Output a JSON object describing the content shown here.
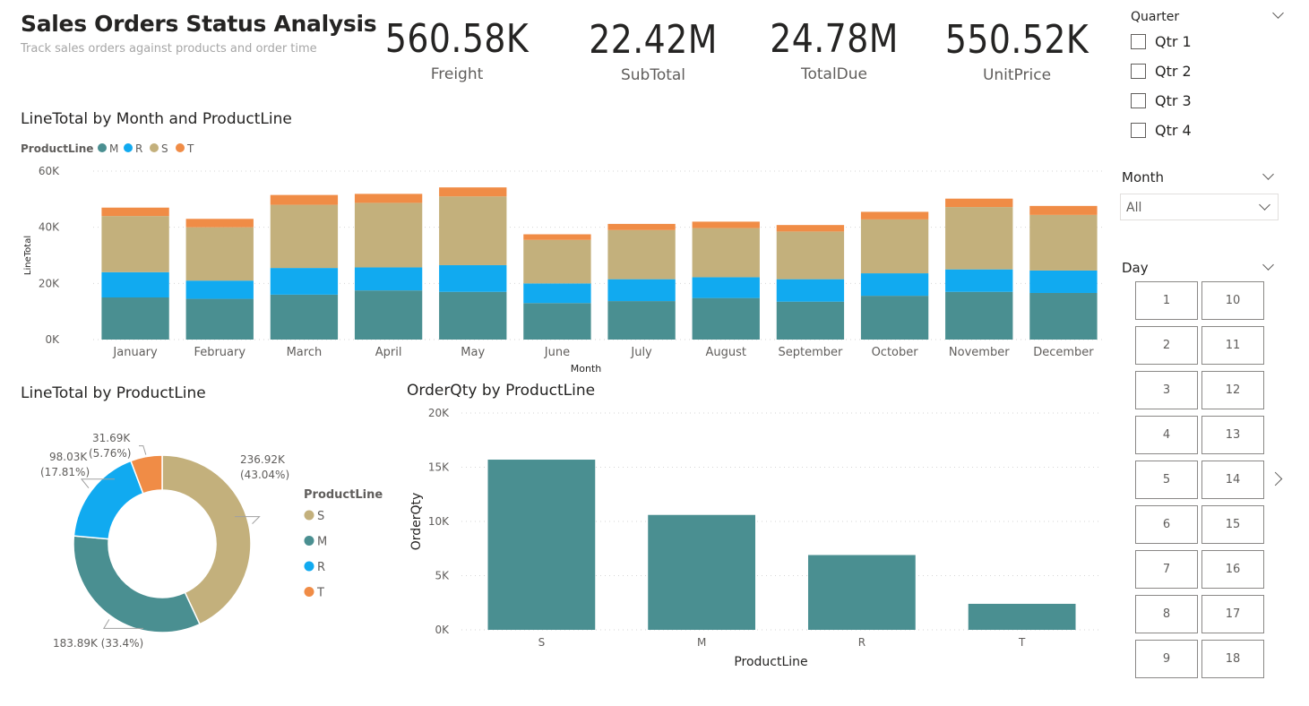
{
  "header": {
    "title": "Sales Orders Status Analysis",
    "subtitle": "Track sales orders against products and order time"
  },
  "kpis": [
    {
      "value": "560.58K",
      "label": "Freight"
    },
    {
      "value": "22.42M",
      "label": "SubTotal"
    },
    {
      "value": "24.78M",
      "label": "TotalDue"
    },
    {
      "value": "550.52K",
      "label": "UnitPrice"
    }
  ],
  "colors": {
    "M": "#4a8f91",
    "R": "#11aaf0",
    "S": "#c3b07c",
    "T": "#f08c46",
    "grid": "#d6d6d6",
    "text": "#605e5c"
  },
  "slicers": {
    "quarter": {
      "header": "Quarter",
      "items": [
        "Qtr 1",
        "Qtr 2",
        "Qtr 3",
        "Qtr 4"
      ]
    },
    "month": {
      "header": "Month",
      "selected": "All"
    },
    "day": {
      "header": "Day",
      "items": [
        "1",
        "2",
        "3",
        "4",
        "5",
        "6",
        "7",
        "8",
        "9",
        "10",
        "11",
        "12",
        "13",
        "14",
        "15",
        "16",
        "17",
        "18"
      ],
      "next_icon": "chevron-right-icon"
    }
  },
  "chart_data": [
    {
      "type": "bar",
      "stacked": true,
      "title": "LineTotal by Month and ProductLine",
      "legend_title": "ProductLine",
      "legend_position": "top-left",
      "xlabel": "Month",
      "ylabel": "LineTotal",
      "ylim": [
        0,
        60000
      ],
      "yticks": [
        0,
        20000,
        40000,
        60000
      ],
      "ytick_labels": [
        "0K",
        "20K",
        "40K",
        "60K"
      ],
      "grid": true,
      "categories": [
        "January",
        "February",
        "March",
        "April",
        "May",
        "June",
        "July",
        "August",
        "September",
        "October",
        "November",
        "December"
      ],
      "series": [
        {
          "name": "M",
          "values": [
            15000,
            14500,
            16000,
            17500,
            17000,
            13000,
            13700,
            14800,
            13500,
            15600,
            17000,
            16600
          ]
        },
        {
          "name": "R",
          "values": [
            9000,
            6500,
            9500,
            8200,
            9500,
            7000,
            7800,
            7400,
            8000,
            8000,
            8000,
            8000
          ]
        },
        {
          "name": "S",
          "values": [
            20000,
            19000,
            22500,
            23000,
            24500,
            15500,
            17500,
            17500,
            17000,
            19200,
            22200,
            19800
          ]
        },
        {
          "name": "T",
          "values": [
            3000,
            3000,
            3500,
            3200,
            3200,
            2000,
            2200,
            2300,
            2300,
            2700,
            3000,
            3200
          ]
        }
      ]
    },
    {
      "type": "pie",
      "donut": true,
      "title": "LineTotal by ProductLine",
      "legend_title": "ProductLine",
      "legend_position": "right",
      "slices": [
        {
          "name": "S",
          "value": 236.92,
          "label": "236.92K",
          "pct_label": "(43.04%)"
        },
        {
          "name": "M",
          "value": 183.89,
          "label": "183.89K (33.4%)"
        },
        {
          "name": "R",
          "value": 98.03,
          "label": "98.03K",
          "pct_label": "(17.81%)"
        },
        {
          "name": "T",
          "value": 31.69,
          "label": "31.69K",
          "pct_label": "(5.76%)"
        }
      ]
    },
    {
      "type": "bar",
      "title": "OrderQty by ProductLine",
      "xlabel": "ProductLine",
      "ylabel": "OrderQty",
      "ylim": [
        0,
        20000
      ],
      "yticks": [
        0,
        5000,
        10000,
        15000,
        20000
      ],
      "ytick_labels": [
        "0K",
        "5K",
        "10K",
        "15K",
        "20K"
      ],
      "grid": true,
      "categories": [
        "S",
        "M",
        "R",
        "T"
      ],
      "values": [
        15700,
        10600,
        6900,
        2400
      ]
    }
  ]
}
